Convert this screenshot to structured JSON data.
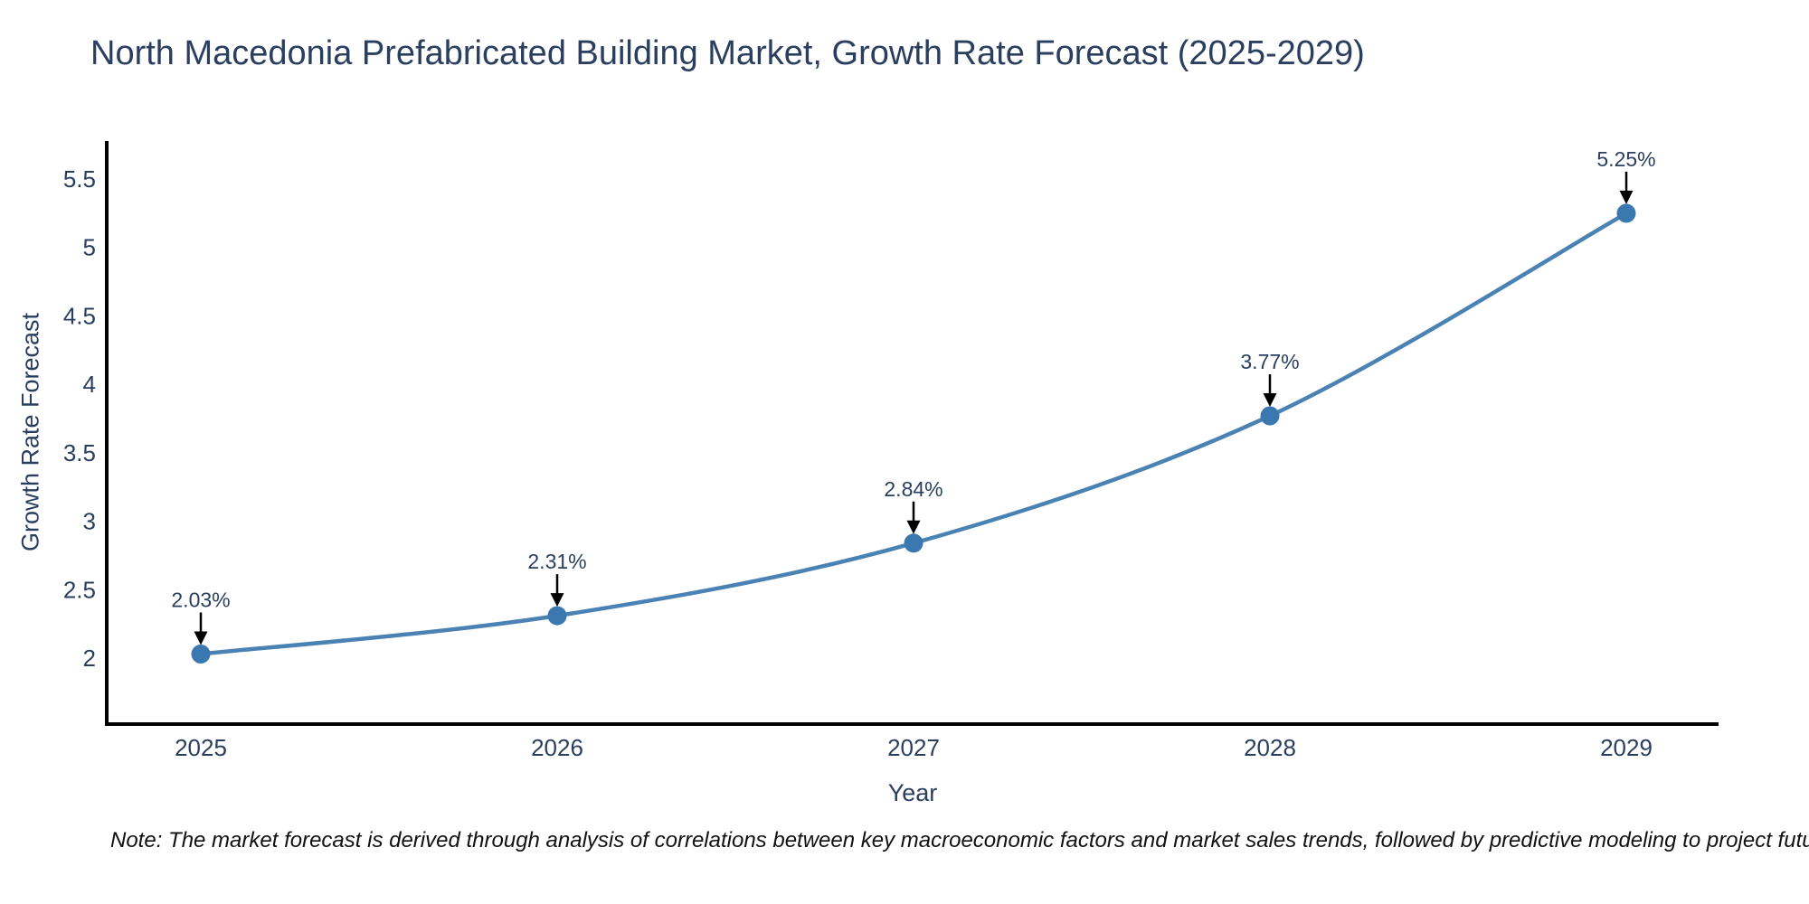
{
  "title": "North Macedonia Prefabricated Building Market, Growth Rate Forecast (2025-2029)",
  "note": "Note: The market forecast is derived through analysis of correlations between key macroeconomic factors and market sales trends, followed by predictive modeling to project future sales",
  "chart_data": {
    "type": "line",
    "title": "North Macedonia Prefabricated Building Market, Growth Rate Forecast (2025-2029)",
    "x": [
      "2025",
      "2026",
      "2027",
      "2028",
      "2029"
    ],
    "values": [
      2.03,
      2.31,
      2.84,
      3.77,
      5.25
    ],
    "point_labels": [
      "2.03%",
      "2.31%",
      "2.84%",
      "3.77%",
      "5.25%"
    ],
    "xlabel": "Year",
    "ylabel": "Growth Rate Forecast",
    "yticks": [
      "2",
      "2.5",
      "3",
      "3.5",
      "4",
      "4.5",
      "5",
      "5.5"
    ],
    "ylim": [
      1.52,
      5.76
    ],
    "grid": false,
    "legend": false,
    "line_shape": "spline",
    "line_color": "#4a82b4",
    "marker_color": "#3c78b0",
    "axis_color": "#000000",
    "annotation_arrow_color": "#000000",
    "text_color": "#2a3f5f",
    "background": "#ffffff"
  }
}
